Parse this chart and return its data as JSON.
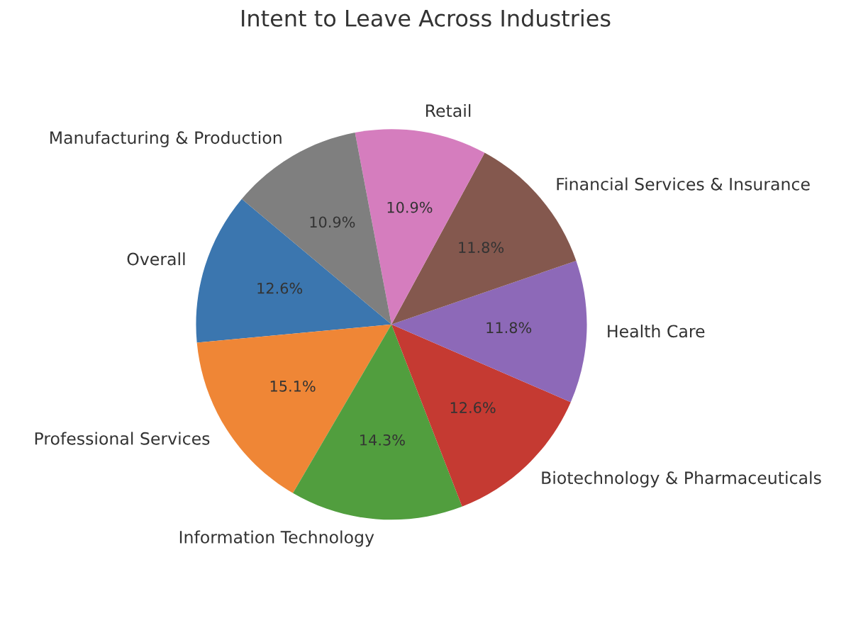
{
  "chart_data": {
    "type": "pie",
    "title": "Intent to Leave Across Industries",
    "categories": [
      "Overall",
      "Professional Services",
      "Information Technology",
      "Biotechnology & Pharmaceuticals",
      "Health Care",
      "Financial Services & Insurance",
      "Retail",
      "Manufacturing & Production"
    ],
    "values": [
      12.6,
      15.1,
      14.3,
      12.6,
      11.8,
      11.8,
      10.9,
      10.9
    ],
    "value_labels": [
      "12.6%",
      "15.1%",
      "14.3%",
      "12.6%",
      "11.8%",
      "11.8%",
      "10.9%",
      "10.9%"
    ],
    "colors": [
      "#3b76af",
      "#ef8636",
      "#519e3e",
      "#c53a32",
      "#8d69b8",
      "#84584e",
      "#d57dbe",
      "#7f7f7f"
    ]
  }
}
